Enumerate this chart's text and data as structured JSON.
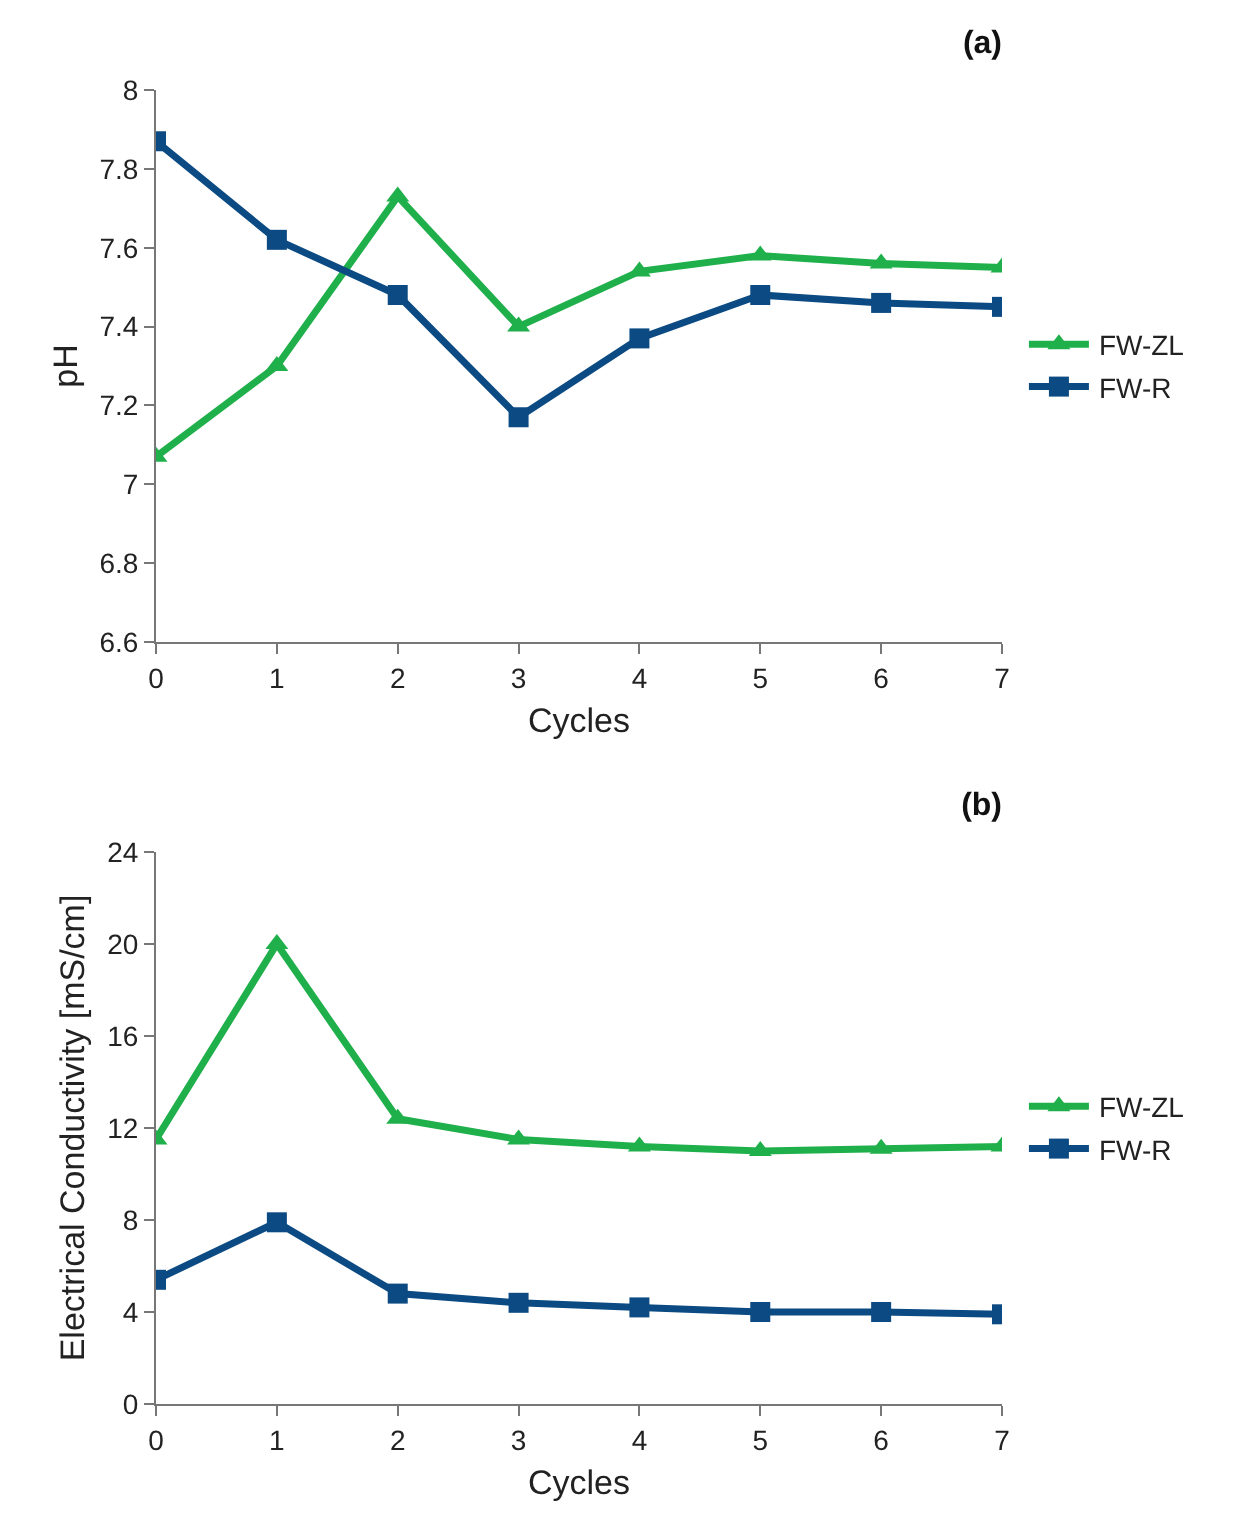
{
  "chart_data": [
    {
      "type": "line",
      "title": "(a)",
      "xlabel": "Cycles",
      "ylabel": "pH",
      "x": [
        0,
        1,
        2,
        3,
        4,
        5,
        6,
        7
      ],
      "xlim": [
        0,
        7
      ],
      "xticks": [
        0,
        1,
        2,
        3,
        4,
        5,
        6,
        7
      ],
      "ylim": [
        6.6,
        8
      ],
      "yticks": [
        6.6,
        6.8,
        7,
        7.2,
        7.4,
        7.6,
        7.8,
        8
      ],
      "grid": false,
      "legend": "right",
      "line_style": "solid",
      "series": [
        {
          "name": "FW-ZL",
          "color": "#1fb04b",
          "marker": "triangle",
          "values": [
            7.07,
            7.3,
            7.73,
            7.4,
            7.54,
            7.58,
            7.56,
            7.55
          ]
        },
        {
          "name": "FW-R",
          "color": "#0b4a82",
          "marker": "square",
          "values": [
            7.87,
            7.62,
            7.48,
            7.17,
            7.37,
            7.48,
            7.46,
            7.45
          ]
        }
      ]
    },
    {
      "type": "line",
      "title": "(b)",
      "xlabel": "Cycles",
      "ylabel": "Electrical Conductivity [mS/cm]",
      "x": [
        0,
        1,
        2,
        3,
        4,
        5,
        6,
        7
      ],
      "xlim": [
        0,
        7
      ],
      "xticks": [
        0,
        1,
        2,
        3,
        4,
        5,
        6,
        7
      ],
      "ylim": [
        0,
        24
      ],
      "yticks": [
        0,
        4,
        8,
        12,
        16,
        20,
        24
      ],
      "grid": false,
      "legend": "right",
      "line_style": "solid",
      "series": [
        {
          "name": "FW-ZL",
          "color": "#1fb04b",
          "marker": "triangle",
          "values": [
            11.5,
            20,
            12.4,
            11.5,
            11.2,
            11,
            11.1,
            11.2
          ]
        },
        {
          "name": "FW-R",
          "color": "#0b4a82",
          "marker": "square",
          "values": [
            5.4,
            7.9,
            4.8,
            4.4,
            4.2,
            4,
            4,
            3.9
          ]
        }
      ]
    }
  ]
}
